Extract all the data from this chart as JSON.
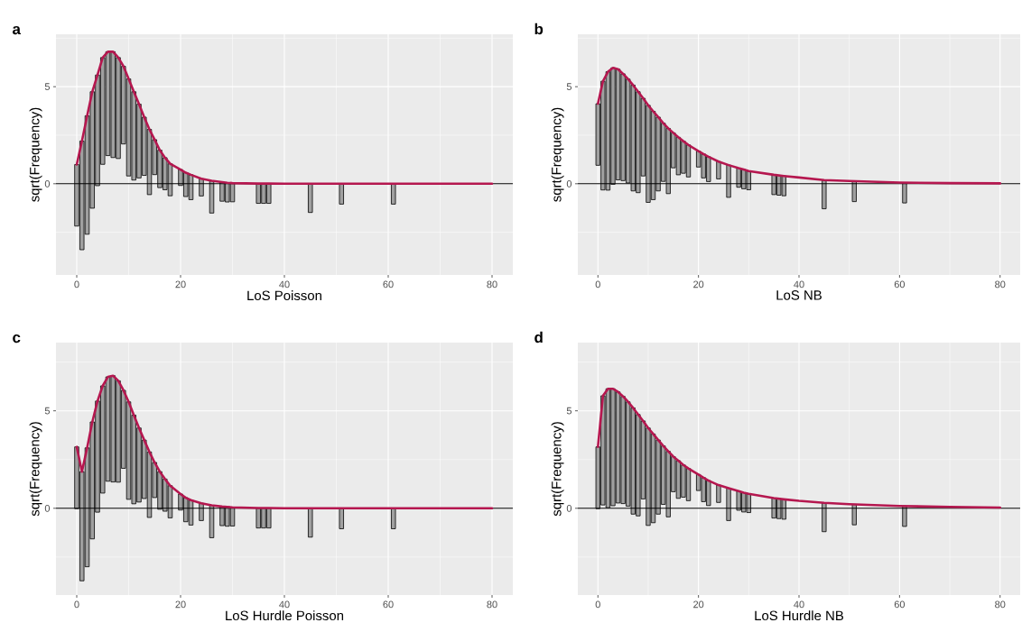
{
  "chart_data": [
    {
      "type": "bar",
      "title": "a",
      "xlabel": "LoS Poisson",
      "ylabel": "sqrt(Frequency)",
      "xlim": [
        -4,
        84
      ],
      "ylim": [
        -4.7,
        7.7
      ],
      "xticks": [
        0,
        20,
        40,
        60,
        80
      ],
      "yticks": [
        0,
        5
      ],
      "grid": true,
      "ref_lines": [
        {
          "axis": "y",
          "value": 0,
          "color": "#000000"
        }
      ],
      "series": [
        {
          "color": "#a0a0a0",
          "x": [
            0,
            1,
            2,
            3,
            4,
            5,
            6,
            7,
            8,
            9,
            10,
            11,
            12,
            13,
            14,
            15,
            16,
            17,
            18,
            20,
            21,
            22,
            24,
            26,
            28,
            29,
            30,
            35,
            36,
            37,
            45,
            51,
            61
          ],
          "values": [
            3.17,
            5.6,
            6.1,
            6.0,
            5.7,
            5.5,
            5.35,
            5.45,
            5.2,
            4.0,
            5.0,
            4.55,
            3.8,
            3.0,
            3.36,
            1.8,
            1.93,
            1.65,
            1.65,
            0.82,
            1.23,
            1.28,
            0.89,
            1.66,
            0.98,
            0.99,
            0.96,
            1.02,
            1.02,
            1.02,
            1.48,
            1.05,
            1.05
          ],
          "base": [
            -2.18,
            -3.4,
            -2.6,
            -1.26,
            -0.1,
            1.0,
            1.45,
            1.35,
            1.3,
            2.05,
            0.4,
            0.19,
            0.3,
            0.43,
            -0.56,
            0.47,
            -0.2,
            -0.31,
            -0.62,
            -0.09,
            -0.66,
            -0.82,
            -0.63,
            -1.51,
            -0.9,
            -0.94,
            -0.93,
            -1.01,
            -1.01,
            -1.01,
            -1.48,
            -1.05,
            -1.05
          ]
        },
        {
          "type": "line",
          "color": "#b5174f",
          "x": [
            0,
            1,
            2,
            3,
            4,
            5,
            6,
            7,
            8,
            9,
            10,
            11,
            12,
            13,
            14,
            15,
            16,
            17,
            18,
            20,
            21,
            22,
            24,
            26,
            28,
            29,
            30,
            35,
            37,
            40,
            45,
            50,
            60,
            70,
            80
          ],
          "values": [
            0.99,
            2.2,
            3.5,
            4.74,
            5.6,
            6.5,
            6.8,
            6.8,
            6.5,
            6.05,
            5.4,
            4.74,
            4.1,
            3.43,
            2.8,
            2.27,
            1.73,
            1.34,
            1.03,
            0.73,
            0.57,
            0.46,
            0.26,
            0.15,
            0.08,
            0.05,
            0.03,
            0.01,
            0.01,
            0,
            0,
            0,
            0,
            0,
            0
          ]
        }
      ]
    },
    {
      "type": "bar",
      "title": "b",
      "xlabel": "LoS NB",
      "ylabel": "sqrt(Frequency)",
      "xlim": [
        -4,
        84
      ],
      "ylim": [
        -4.7,
        7.7
      ],
      "xticks": [
        0,
        20,
        40,
        60,
        80
      ],
      "yticks": [
        0,
        5
      ],
      "grid": true,
      "ref_lines": [
        {
          "axis": "y",
          "value": 0,
          "color": "#000000"
        }
      ],
      "series": [
        {
          "color": "#a0a0a0",
          "x": [
            0,
            1,
            2,
            3,
            4,
            5,
            6,
            7,
            8,
            9,
            10,
            11,
            12,
            13,
            14,
            15,
            16,
            17,
            18,
            20,
            21,
            22,
            24,
            26,
            28,
            29,
            30,
            35,
            36,
            37,
            45,
            51,
            61
          ],
          "values": [
            3.17,
            5.6,
            6.1,
            6.0,
            5.7,
            5.5,
            5.35,
            5.45,
            5.2,
            4.0,
            5.0,
            4.55,
            3.8,
            3.0,
            3.36,
            1.8,
            1.93,
            1.65,
            1.65,
            0.82,
            1.23,
            1.28,
            0.89,
            1.66,
            0.98,
            0.99,
            0.96,
            1.02,
            1.02,
            1.02,
            1.48,
            1.05,
            1.05
          ],
          "base": [
            0.95,
            -0.32,
            -0.33,
            -0.03,
            0.2,
            0.16,
            0.04,
            -0.37,
            -0.46,
            0.4,
            -0.96,
            -0.82,
            -0.37,
            0.12,
            -0.51,
            0.82,
            0.46,
            0.54,
            0.35,
            0.86,
            0.3,
            0.11,
            0.25,
            -0.7,
            -0.18,
            -0.26,
            -0.31,
            -0.56,
            -0.59,
            -0.62,
            -1.29,
            -0.92,
            -0.99
          ]
        },
        {
          "type": "line",
          "color": "#b5174f",
          "x": [
            0,
            1,
            2,
            3,
            4,
            5,
            6,
            7,
            8,
            9,
            10,
            11,
            12,
            13,
            14,
            15,
            16,
            17,
            18,
            20,
            21,
            22,
            24,
            26,
            28,
            29,
            30,
            35,
            37,
            40,
            45,
            50,
            60,
            70,
            80
          ],
          "values": [
            4.12,
            5.28,
            5.77,
            5.97,
            5.9,
            5.66,
            5.39,
            5.08,
            4.74,
            4.4,
            4.04,
            3.73,
            3.43,
            3.12,
            2.85,
            2.62,
            2.39,
            2.19,
            2.0,
            1.68,
            1.53,
            1.39,
            1.14,
            0.96,
            0.8,
            0.73,
            0.65,
            0.46,
            0.4,
            0.32,
            0.19,
            0.14,
            0.06,
            0.03,
            0.02
          ]
        }
      ]
    },
    {
      "type": "bar",
      "title": "c",
      "xlabel": "LoS Hurdle Poisson",
      "ylabel": "sqrt(Frequency)",
      "xlim": [
        -4,
        84
      ],
      "ylim": [
        -4.45,
        8.5
      ],
      "xticks": [
        0,
        20,
        40,
        60,
        80
      ],
      "yticks": [
        0,
        5
      ],
      "grid": true,
      "ref_lines": [
        {
          "axis": "y",
          "value": 0,
          "color": "#000000"
        }
      ],
      "series": [
        {
          "color": "#a0a0a0",
          "x": [
            0,
            1,
            2,
            3,
            4,
            5,
            6,
            7,
            8,
            9,
            10,
            11,
            12,
            13,
            14,
            15,
            16,
            17,
            18,
            20,
            21,
            22,
            24,
            26,
            28,
            29,
            30,
            35,
            36,
            37,
            45,
            51,
            61
          ],
          "values": [
            3.17,
            5.6,
            6.1,
            6.0,
            5.7,
            5.5,
            5.35,
            5.45,
            5.2,
            4.0,
            5.0,
            4.55,
            3.8,
            3.0,
            3.36,
            1.8,
            1.93,
            1.65,
            1.65,
            0.82,
            1.23,
            1.28,
            0.89,
            1.66,
            0.98,
            0.99,
            0.96,
            1.02,
            1.02,
            1.02,
            1.48,
            1.05,
            1.05
          ],
          "base": [
            -0.02,
            -3.72,
            -3.0,
            -1.57,
            -0.2,
            0.78,
            1.39,
            1.35,
            1.34,
            2.05,
            0.46,
            0.23,
            0.32,
            0.5,
            -0.47,
            0.55,
            -0.05,
            -0.15,
            -0.49,
            -0.09,
            -0.69,
            -0.86,
            -0.63,
            -1.51,
            -0.89,
            -0.92,
            -0.91,
            -1.01,
            -1.01,
            -1.01,
            -1.48,
            -1.05,
            -1.05
          ]
        },
        {
          "type": "line",
          "color": "#b5174f",
          "x": [
            0,
            1,
            2,
            3,
            4,
            5,
            6,
            7,
            8,
            9,
            10,
            11,
            12,
            13,
            14,
            15,
            16,
            17,
            18,
            20,
            21,
            22,
            24,
            26,
            28,
            29,
            30,
            35,
            37,
            40,
            45,
            50,
            60,
            70,
            80
          ],
          "values": [
            3.15,
            1.88,
            3.1,
            4.43,
            5.5,
            6.28,
            6.74,
            6.8,
            6.54,
            6.05,
            5.46,
            4.78,
            4.12,
            3.5,
            2.89,
            2.35,
            1.88,
            1.5,
            1.16,
            0.73,
            0.54,
            0.42,
            0.26,
            0.15,
            0.09,
            0.07,
            0.05,
            0.01,
            0.01,
            0,
            0,
            0,
            0,
            0,
            0
          ]
        }
      ]
    },
    {
      "type": "bar",
      "title": "d",
      "xlabel": "LoS Hurdle NB",
      "ylabel": "sqrt(Frequency)",
      "xlim": [
        -4,
        84
      ],
      "ylim": [
        -4.45,
        8.5
      ],
      "xticks": [
        0,
        20,
        40,
        60,
        80
      ],
      "yticks": [
        0,
        5
      ],
      "grid": true,
      "ref_lines": [
        {
          "axis": "y",
          "value": 0,
          "color": "#000000"
        }
      ],
      "series": [
        {
          "color": "#a0a0a0",
          "x": [
            0,
            1,
            2,
            3,
            4,
            5,
            6,
            7,
            8,
            9,
            10,
            11,
            12,
            13,
            14,
            15,
            16,
            17,
            18,
            20,
            21,
            22,
            24,
            26,
            28,
            29,
            30,
            35,
            36,
            37,
            45,
            51,
            61
          ],
          "values": [
            3.17,
            5.6,
            6.1,
            6.0,
            5.7,
            5.5,
            5.35,
            5.45,
            5.2,
            4.0,
            5.0,
            4.55,
            3.8,
            3.0,
            3.36,
            1.8,
            1.93,
            1.65,
            1.65,
            0.82,
            1.23,
            1.28,
            0.89,
            1.66,
            0.98,
            0.99,
            0.96,
            1.02,
            1.02,
            1.02,
            1.48,
            1.05,
            1.05
          ],
          "base": [
            -0.02,
            0.17,
            0.03,
            0.13,
            0.27,
            0.24,
            0.11,
            -0.3,
            -0.39,
            0.48,
            -0.88,
            -0.74,
            -0.3,
            0.2,
            -0.44,
            0.85,
            0.51,
            0.57,
            0.39,
            0.91,
            0.34,
            0.14,
            0.3,
            -0.63,
            -0.1,
            -0.19,
            -0.22,
            -0.5,
            -0.53,
            -0.56,
            -1.2,
            -0.85,
            -0.93
          ]
        },
        {
          "type": "line",
          "color": "#b5174f",
          "x": [
            0,
            1,
            2,
            3,
            4,
            5,
            6,
            7,
            8,
            9,
            10,
            11,
            12,
            13,
            14,
            15,
            16,
            17,
            18,
            20,
            21,
            22,
            24,
            26,
            28,
            29,
            30,
            35,
            37,
            40,
            45,
            50,
            60,
            70,
            80
          ],
          "values": [
            3.15,
            5.77,
            6.13,
            6.13,
            5.97,
            5.74,
            5.46,
            5.15,
            4.81,
            4.48,
            4.12,
            3.81,
            3.5,
            3.2,
            2.92,
            2.65,
            2.44,
            2.22,
            2.04,
            1.73,
            1.57,
            1.42,
            1.19,
            1.03,
            0.88,
            0.8,
            0.74,
            0.52,
            0.46,
            0.38,
            0.28,
            0.21,
            0.12,
            0.07,
            0.04
          ]
        }
      ]
    }
  ]
}
